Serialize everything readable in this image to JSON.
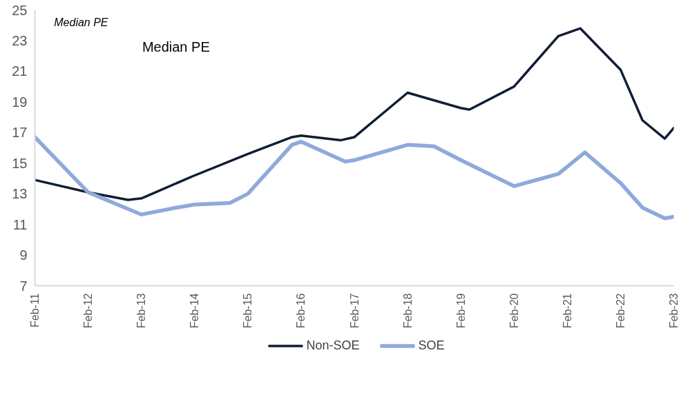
{
  "chart_data": {
    "type": "line",
    "title": "Median PE",
    "annotations": [
      "Median PE"
    ],
    "xlim": [
      "2011-02",
      "2023-02"
    ],
    "xticks": [
      {
        "value": "2011-02",
        "label": "Feb-11"
      },
      {
        "value": "2012-02",
        "label": "Feb-12"
      },
      {
        "value": "2013-02",
        "label": "Feb-13"
      },
      {
        "value": "2014-02",
        "label": "Feb-14"
      },
      {
        "value": "2015-02",
        "label": "Feb-15"
      },
      {
        "value": "2016-02",
        "label": "Feb-16"
      },
      {
        "value": "2017-02",
        "label": "Feb-17"
      },
      {
        "value": "2018-02",
        "label": "Feb-18"
      },
      {
        "value": "2019-02",
        "label": "Feb-19"
      },
      {
        "value": "2020-02",
        "label": "Feb-20"
      },
      {
        "value": "2021-02",
        "label": "Feb-21"
      },
      {
        "value": "2022-02",
        "label": "Feb-22"
      },
      {
        "value": "2023-02",
        "label": "Feb-23"
      }
    ],
    "ylim": [
      7,
      25
    ],
    "yticks": [
      7,
      9,
      11,
      13,
      15,
      17,
      19,
      21,
      23,
      25
    ],
    "legend": "bottom",
    "series": [
      {
        "name": "Non-SOE",
        "color": "#111d35",
        "x": [
          "2011-02",
          "2012-02",
          "2012-11",
          "2013-02",
          "2014-02",
          "2015-02",
          "2015-12",
          "2016-02",
          "2016-11",
          "2017-02",
          "2018-02",
          "2019-02",
          "2019-04",
          "2020-02",
          "2020-12",
          "2021-05",
          "2022-02",
          "2022-07",
          "2022-12",
          "2023-02"
        ],
        "values": [
          13.9,
          13.1,
          12.6,
          12.7,
          14.2,
          15.6,
          16.7,
          16.8,
          16.5,
          16.7,
          19.6,
          18.6,
          18.5,
          20.0,
          23.3,
          23.8,
          21.1,
          17.8,
          16.6,
          17.3
        ]
      },
      {
        "name": "SOE",
        "color": "#8eaadb",
        "x": [
          "2011-02",
          "2012-02",
          "2013-02",
          "2013-10",
          "2014-02",
          "2014-10",
          "2015-02",
          "2015-12",
          "2016-02",
          "2016-12",
          "2017-02",
          "2018-02",
          "2018-08",
          "2019-02",
          "2020-02",
          "2020-12",
          "2021-06",
          "2022-02",
          "2022-07",
          "2022-12",
          "2023-02"
        ],
        "values": [
          16.7,
          13.1,
          11.65,
          12.1,
          12.3,
          12.4,
          13.0,
          16.2,
          16.4,
          15.1,
          15.2,
          16.2,
          16.1,
          15.2,
          13.5,
          14.3,
          15.7,
          13.7,
          12.1,
          11.4,
          11.5
        ]
      }
    ]
  }
}
